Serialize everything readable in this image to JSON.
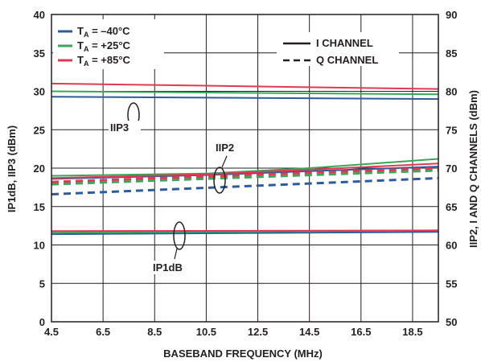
{
  "chart_data": {
    "type": "line",
    "xlabel": "BASEBAND FREQUENCY (MHz)",
    "ylabel_left": "IP1dB, IIP3 (dBm)",
    "ylabel_right": "IIP2, I AND Q CHANNELS (dBm)",
    "xlim": [
      4.5,
      19.5
    ],
    "ylim_left": [
      0,
      40
    ],
    "ylim_right": [
      50,
      90
    ],
    "x_ticks": [
      "4.5",
      "6.5",
      "8.5",
      "10.5",
      "12.5",
      "14.5",
      "16.5",
      "18.5"
    ],
    "y_ticks_left": [
      "0",
      "5",
      "10",
      "15",
      "20",
      "25",
      "30",
      "35",
      "40"
    ],
    "y_ticks_right": [
      "50",
      "55",
      "60",
      "65",
      "70",
      "75",
      "80",
      "85",
      "90"
    ],
    "grid": true,
    "colors": {
      "m40": "#2e5b9a",
      "p25": "#3aa65a",
      "p85": "#e03a52",
      "axis": "#231f20",
      "grid": "#231f20"
    },
    "legend_temp": [
      {
        "key": "m40",
        "pre": "T",
        "sub": "A",
        "post": " = –40°C"
      },
      {
        "key": "p25",
        "pre": "T",
        "sub": "A",
        "post": " = +25°C"
      },
      {
        "key": "p85",
        "pre": "T",
        "sub": "A",
        "post": " = +85°C"
      }
    ],
    "legend_channel": [
      {
        "label": "I CHANNEL",
        "dash": false
      },
      {
        "label": "Q CHANNEL",
        "dash": true
      }
    ],
    "annotations": {
      "iip3": "IIP3",
      "iip2": "IIP2",
      "ip1db": "IP1dB"
    },
    "series": [
      {
        "group": "IIP3",
        "temp": "m40",
        "channel": "I",
        "axis": "left",
        "x": [
          4.5,
          19.5
        ],
        "y": [
          29.3,
          29.0
        ]
      },
      {
        "group": "IIP3",
        "temp": "p25",
        "channel": "I",
        "axis": "left",
        "x": [
          4.5,
          19.5
        ],
        "y": [
          30.0,
          29.6
        ]
      },
      {
        "group": "IIP3",
        "temp": "p85",
        "channel": "I",
        "axis": "left",
        "x": [
          4.5,
          19.5
        ],
        "y": [
          31.0,
          30.3
        ]
      },
      {
        "group": "IP1dB",
        "temp": "m40",
        "channel": "I",
        "axis": "left",
        "x": [
          4.5,
          19.5
        ],
        "y": [
          11.4,
          11.7
        ]
      },
      {
        "group": "IP1dB",
        "temp": "p25",
        "channel": "I",
        "axis": "left",
        "x": [
          4.5,
          19.5
        ],
        "y": [
          11.6,
          11.9
        ]
      },
      {
        "group": "IP1dB",
        "temp": "p85",
        "channel": "I",
        "axis": "left",
        "x": [
          4.5,
          19.5
        ],
        "y": [
          11.8,
          11.9
        ]
      },
      {
        "group": "IIP2",
        "temp": "m40",
        "channel": "I",
        "axis": "right",
        "x": [
          4.5,
          10.5,
          14.5,
          19.5
        ],
        "y": [
          68.6,
          69.1,
          69.6,
          70.2
        ]
      },
      {
        "group": "IIP2",
        "temp": "p25",
        "channel": "I",
        "axis": "right",
        "x": [
          4.5,
          10.5,
          14.5,
          19.5
        ],
        "y": [
          69.0,
          69.3,
          70.0,
          71.2
        ]
      },
      {
        "group": "IIP2",
        "temp": "p85",
        "channel": "I",
        "axis": "right",
        "x": [
          4.5,
          10.5,
          14.5,
          19.5
        ],
        "y": [
          68.7,
          69.2,
          69.8,
          70.6
        ]
      },
      {
        "group": "IIP2",
        "temp": "m40",
        "channel": "Q",
        "axis": "right",
        "x": [
          4.5,
          19.5
        ],
        "y": [
          66.6,
          68.7
        ]
      },
      {
        "group": "IIP2",
        "temp": "p25",
        "channel": "Q",
        "axis": "right",
        "x": [
          4.5,
          19.5
        ],
        "y": [
          67.9,
          69.7
        ]
      },
      {
        "group": "IIP2",
        "temp": "p85",
        "channel": "Q",
        "axis": "right",
        "x": [
          4.5,
          19.5
        ],
        "y": [
          68.2,
          70.0
        ]
      }
    ]
  }
}
